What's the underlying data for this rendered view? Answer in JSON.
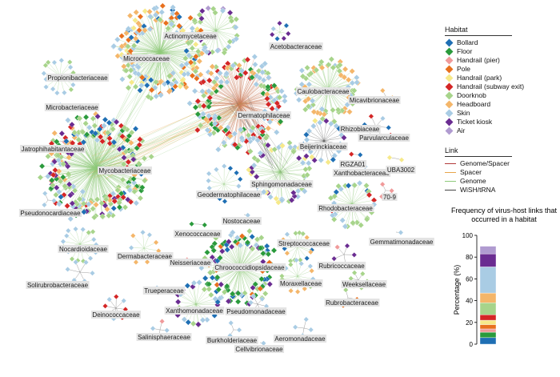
{
  "colors": {
    "Bollard": "#1f6fb4",
    "Floor": "#2a9a3c",
    "Handrail (pier)": "#f09a9a",
    "Pole": "#e8701e",
    "Handrail (park)": "#f6e98a",
    "Handrail (subway exit)": "#d42626",
    "Doorknob": "#a7d48b",
    "Headboard": "#f4b66a",
    "Skin": "#a9cce4",
    "Ticket kiosk": "#6a2c91",
    "Air": "#b09bd0"
  },
  "habitat_legend": {
    "title": "Habitat",
    "items": [
      "Bollard",
      "Floor",
      "Handrail (pier)",
      "Pole",
      "Handrail (park)",
      "Handrail (subway exit)",
      "Doorknob",
      "Headboard",
      "Skin",
      "Ticket kiosk",
      "Air"
    ]
  },
  "link_legend": {
    "title": "Link",
    "items": [
      {
        "label": "Genome/Spacer",
        "color": "#b23a3a"
      },
      {
        "label": "Spacer",
        "color": "#e8a54a"
      },
      {
        "label": "Genome",
        "color": "#8fca7a"
      },
      {
        "label": "WiSH/tRNA",
        "color": "#444444"
      }
    ]
  },
  "families": [
    "Actinomycetaceae",
    "Acetobacteraceae",
    "Micrococcaceae",
    "Propionibacteriaceae",
    "Caulobacteraceae",
    "Micavibrionaceae",
    "Microbacteriaceae",
    "Dermatophilaceae",
    "Rhizobiaceae",
    "Parvularculaceae",
    "Jatrophihabitantaceae",
    "Beijerinckiaceae",
    "Mycobacteriaceae",
    "RGZA01",
    "Xanthobacteraceae",
    "UBA3002",
    "Sphingomonadaceae",
    "Geodermatophilaceae",
    "Pseudonocardiaceae",
    "70-9",
    "Rhodobacteraceae",
    "Nostocaceae",
    "Xenococcaceae",
    "Gemmatimonadaceae",
    "Nocardioidaceae",
    "Streptococcaceae",
    "Dermabacteraceae",
    "Neisseriaceae",
    "Chroococcidiopsidaceae",
    "Rubricoccaceae",
    "Trueperaceae",
    "Moraxellaceae",
    "Weeksellaceae",
    "Solirubrobacteraceae",
    "Xanthomonadaceae",
    "Pseudomonadaceae",
    "Rubrobacteraceae",
    "Deinococcaceae",
    "Salinisphaeraceae",
    "Burkholderiaceae",
    "Aeromonadaceae",
    "Cellvibrionaceae"
  ],
  "chart_data": {
    "type": "bar",
    "title": "Frequency of virus-host links that occurred in a habitat",
    "ylabel": "Percentage (%)",
    "ylim": [
      0,
      100
    ],
    "yticks": [
      0,
      20,
      40,
      60,
      80,
      100
    ],
    "stacked": true,
    "categories": [
      ""
    ],
    "series": [
      {
        "name": "Bollard",
        "values": [
          6
        ]
      },
      {
        "name": "Floor",
        "values": [
          5
        ]
      },
      {
        "name": "Handrail (pier)",
        "values": [
          3
        ]
      },
      {
        "name": "Pole",
        "values": [
          4
        ]
      },
      {
        "name": "Handrail (park)",
        "values": [
          4
        ]
      },
      {
        "name": "Handrail (subway exit)",
        "values": [
          5
        ]
      },
      {
        "name": "Doorknob",
        "values": [
          11
        ]
      },
      {
        "name": "Headboard",
        "values": [
          9
        ]
      },
      {
        "name": "Skin",
        "values": [
          24
        ]
      },
      {
        "name": "Ticket kiosk",
        "values": [
          12
        ]
      },
      {
        "name": "Air",
        "values": [
          7
        ]
      }
    ]
  }
}
